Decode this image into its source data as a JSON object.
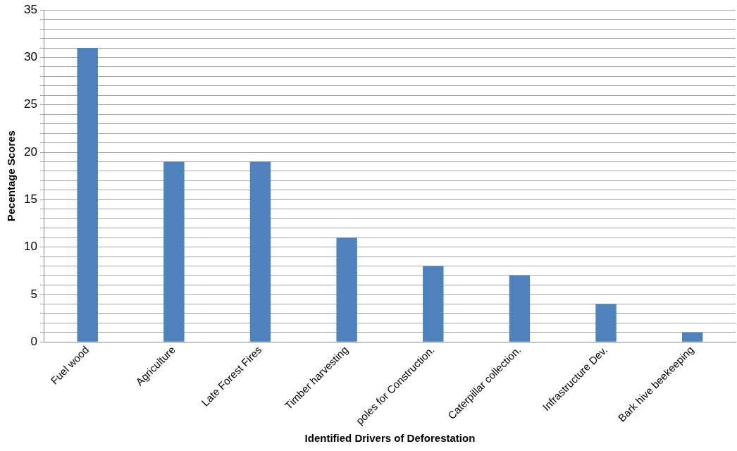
{
  "chart_data": {
    "type": "bar",
    "xlabel": "Identified Drivers of Deforestation",
    "ylabel": "Pecentage Scores",
    "categories": [
      "Fuel wood",
      "Agriculture",
      "Late Forest Fires",
      "Timber harvesting",
      "poles for Construction.",
      "Caterpillar collection.",
      "Infrastructure Dev.",
      "Bark hive beekeeping"
    ],
    "values": [
      31,
      19,
      19,
      11,
      8,
      7,
      4,
      1
    ],
    "color": "#4f81bd",
    "ylim": [
      0,
      35
    ],
    "yticks": [
      0,
      {
        "value": 1,
        "label": null
      },
      {
        "value": 2,
        "label": null
      },
      {
        "value": 3,
        "label": null
      },
      {
        "value": 4,
        "label": null
      },
      5,
      {
        "value": 6,
        "label": null
      },
      {
        "value": 7,
        "label": null
      },
      {
        "value": 8,
        "label": null
      },
      {
        "value": 9,
        "label": null
      },
      10,
      {
        "value": 11,
        "label": null
      },
      {
        "value": 12,
        "label": null
      },
      {
        "value": 13,
        "label": null
      },
      {
        "value": 14,
        "label": null
      },
      15,
      {
        "value": 16,
        "label": null
      },
      {
        "value": 17,
        "label": null
      },
      {
        "value": 18,
        "label": null
      },
      {
        "value": 19,
        "label": null
      },
      20,
      {
        "value": 21,
        "label": null
      },
      {
        "value": 22,
        "label": null
      },
      {
        "value": 23,
        "label": null
      },
      {
        "value": 24,
        "label": null
      },
      25,
      {
        "value": 26,
        "label": null
      },
      {
        "value": 27,
        "label": null
      },
      {
        "value": 28,
        "label": null
      },
      {
        "value": 29,
        "label": null
      },
      30,
      {
        "value": 31,
        "label": null
      },
      {
        "value": 32,
        "label": null
      },
      {
        "value": 33,
        "label": null
      },
      {
        "value": 34,
        "label": null
      },
      35
    ],
    "grid": "y",
    "legend": false
  }
}
